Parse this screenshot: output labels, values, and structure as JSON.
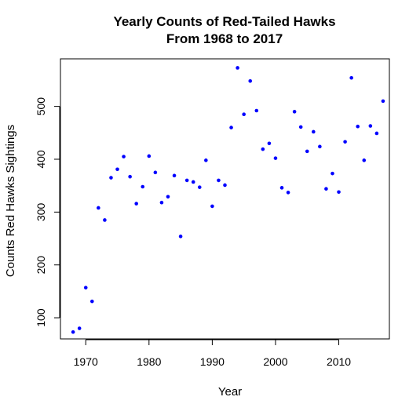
{
  "chart_data": {
    "type": "scatter",
    "title": "Yearly Counts of Red-Tailed Hawks",
    "subtitle": "From 1968 to 2017",
    "xlabel": "Year",
    "ylabel": "Counts Red Hawks Sightings",
    "xlim": [
      1966,
      2018
    ],
    "ylim": [
      60,
      590
    ],
    "xticks": [
      1970,
      1980,
      1990,
      2000,
      2010
    ],
    "yticks": [
      100,
      200,
      300,
      400,
      500
    ],
    "point_color": "#0000ff",
    "grid": false,
    "legend": "none",
    "series": [
      {
        "x": [
          1968,
          1969,
          1970,
          1971,
          1972,
          1973,
          1974,
          1975,
          1976,
          1977,
          1978,
          1979,
          1980,
          1981,
          1982,
          1983,
          1984,
          1985,
          1986,
          1987,
          1988,
          1989,
          1990,
          1991,
          1992,
          1993,
          1994,
          1995,
          1996,
          1997,
          1998,
          1999,
          2000,
          2001,
          2002,
          2003,
          2004,
          2005,
          2006,
          2007,
          2008,
          2009,
          2010,
          2011,
          2012,
          2013,
          2014,
          2015,
          2016,
          2017
        ],
        "y": [
          73,
          80,
          157,
          131,
          308,
          285,
          365,
          381,
          405,
          367,
          316,
          348,
          406,
          375,
          318,
          329,
          369,
          254,
          360,
          357,
          347,
          398,
          311,
          360,
          351,
          460,
          573,
          485,
          548,
          492,
          419,
          430,
          402,
          346,
          337,
          490,
          461,
          415,
          452,
          424,
          344,
          373,
          338,
          433,
          554,
          462,
          398,
          463,
          449,
          510
        ]
      }
    ]
  }
}
